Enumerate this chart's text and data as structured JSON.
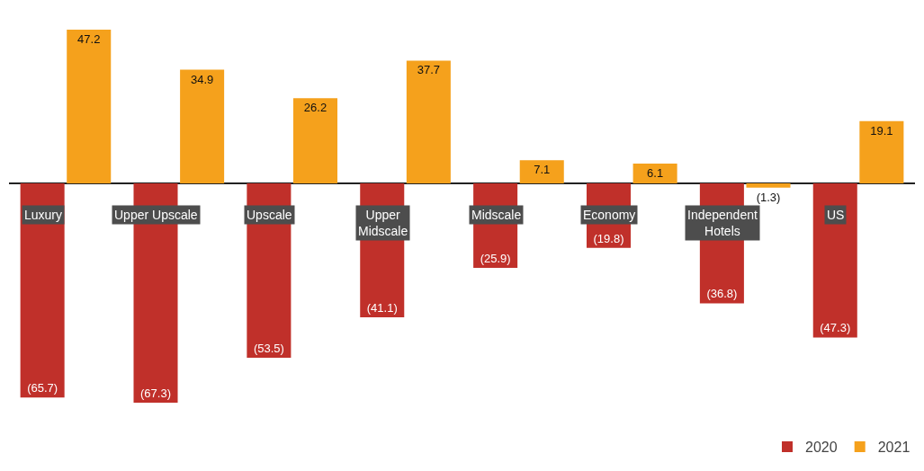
{
  "chart_data": {
    "type": "bar",
    "categories": [
      "Luxury",
      "Upper Upscale",
      "Upscale",
      "Upper Midscale",
      "Midscale",
      "Economy",
      "Independent Hotels",
      "US"
    ],
    "series": [
      {
        "name": "2020",
        "color": "#c0302a",
        "values": [
          -65.7,
          -67.3,
          -53.5,
          -41.1,
          -25.9,
          -19.8,
          -36.8,
          -47.3
        ],
        "value_labels": [
          "(65.7)",
          "(67.3)",
          "(53.5)",
          "(41.1)",
          "(25.9)",
          "(19.8)",
          "(36.8)",
          "(47.3)"
        ]
      },
      {
        "name": "2021",
        "color": "#f5a11c",
        "values": [
          47.2,
          34.9,
          26.2,
          37.7,
          7.1,
          6.1,
          -1.3,
          19.1
        ],
        "value_labels": [
          "47.2",
          "34.9",
          "26.2",
          "37.7",
          "7.1",
          "6.1",
          "(1.3)",
          "19.1"
        ]
      }
    ],
    "grid": false,
    "legend": "bottom right"
  }
}
